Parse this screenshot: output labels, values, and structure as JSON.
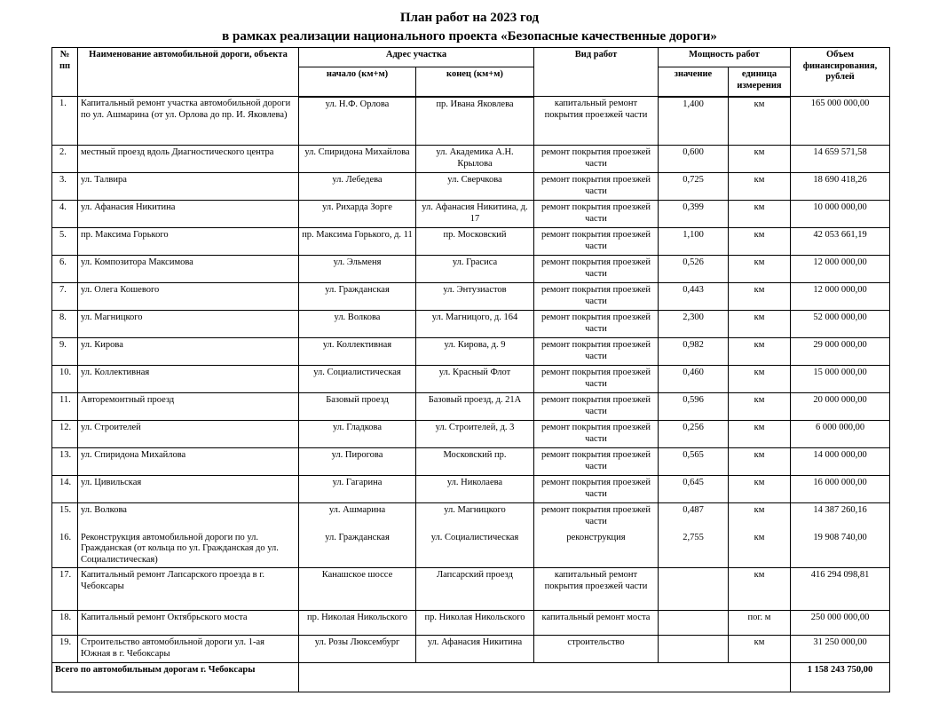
{
  "title": {
    "line1": "План работ на 2023 год",
    "line2": "в рамках реализации национального проекта «Безопасные качественные дороги»"
  },
  "headers": {
    "num": "№ пп",
    "name": "Наименование автомобильной дороги, объекта",
    "address": "Адрес участка",
    "start": "начало (км+м)",
    "end": "конец (км+м)",
    "work": "Вид работ",
    "capacity": "Мощность работ",
    "value": "значение",
    "unit": "единица измерения",
    "funding": "Объем финансирования, рублей"
  },
  "rows": [
    {
      "num": "1.",
      "name": "Капитальный ремонт участка автомобильной дороги по ул. Ашмарина (от ул. Орлова до пр. И. Яковлева)",
      "start": "ул. Н.Ф. Орлова",
      "end": "пр. Ивана Яковлева",
      "work": "капитальный ремонт покрытия проезжей части",
      "value": "1,400",
      "unit": "км",
      "funding": "165 000 000,00"
    },
    {
      "num": "2.",
      "name": "местный проезд вдоль Диагностического центра",
      "start": "ул. Спиридона Михайлова",
      "end": "ул. Академика А.Н. Крылова",
      "work": "ремонт покрытия проезжей части",
      "value": "0,600",
      "unit": "км",
      "funding": "14 659 571,58"
    },
    {
      "num": "3.",
      "name": "ул. Талвира",
      "start": "ул. Лебедева",
      "end": "ул. Сверчкова",
      "work": "ремонт покрытия проезжей части",
      "value": "0,725",
      "unit": "км",
      "funding": "18 690 418,26"
    },
    {
      "num": "4.",
      "name": "ул. Афанасия Никитина",
      "start": "ул. Рихарда Зорге",
      "end": "ул. Афанасия Никитина, д. 17",
      "work": "ремонт покрытия проезжей части",
      "value": "0,399",
      "unit": "км",
      "funding": "10 000 000,00"
    },
    {
      "num": "5.",
      "name": "пр. Максима Горького",
      "start": "пр. Максима Горького, д. 11",
      "end": "пр. Московский",
      "work": "ремонт покрытия проезжей части",
      "value": "1,100",
      "unit": "км",
      "funding": "42 053 661,19"
    },
    {
      "num": "6.",
      "name": "ул. Композитора Максимова",
      "start": "ул. Эльменя",
      "end": "ул. Грасиса",
      "work": "ремонт покрытия проезжей части",
      "value": "0,526",
      "unit": "км",
      "funding": "12 000 000,00"
    },
    {
      "num": "7.",
      "name": "ул. Олега Кошевого",
      "start": "ул. Гражданская",
      "end": "ул. Энтузиастов",
      "work": "ремонт покрытия проезжей части",
      "value": "0,443",
      "unit": "км",
      "funding": "12 000 000,00"
    },
    {
      "num": "8.",
      "name": "ул. Магницкого",
      "start": "ул. Волкова",
      "end": "ул. Магницого, д. 164",
      "work": "ремонт покрытия проезжей части",
      "value": "2,300",
      "unit": "км",
      "funding": "52 000 000,00"
    },
    {
      "num": "9.",
      "name": "ул. Кирова",
      "start": "ул. Коллективная",
      "end": "ул. Кирова, д. 9",
      "work": "ремонт покрытия проезжей части",
      "value": "0,982",
      "unit": "км",
      "funding": "29 000 000,00"
    },
    {
      "num": "10.",
      "name": "ул. Коллективная",
      "start": "ул. Социалистическая",
      "end": "ул. Красный Флот",
      "work": "ремонт покрытия проезжей части",
      "value": "0,460",
      "unit": "км",
      "funding": "15 000 000,00"
    },
    {
      "num": "11.",
      "name": "Авторемонтный проезд",
      "start": "Базовый проезд",
      "end": "Базовый проезд, д. 21А",
      "work": "ремонт покрытия проезжей части",
      "value": "0,596",
      "unit": "км",
      "funding": "20 000 000,00"
    },
    {
      "num": "12.",
      "name": "ул. Строителей",
      "start": "ул. Гладкова",
      "end": "ул. Строителей, д. 3",
      "work": "ремонт покрытия проезжей части",
      "value": "0,256",
      "unit": "км",
      "funding": "6 000 000,00"
    },
    {
      "num": "13.",
      "name": "ул. Спиридона Михайлова",
      "start": "ул. Пирогова",
      "end": "Московский пр.",
      "work": "ремонт покрытия проезжей части",
      "value": "0,565",
      "unit": "км",
      "funding": "14 000 000,00"
    },
    {
      "num": "14.",
      "name": "ул. Цивильская",
      "start": "ул. Гагарина",
      "end": "ул. Николаева",
      "work": "ремонт покрытия проезжей части",
      "value": "0,645",
      "unit": "км",
      "funding": "16 000 000,00"
    },
    {
      "num": "15.",
      "name": "ул. Волкова",
      "start": "ул. Ашмарина",
      "end": "ул. Магницкого",
      "work": "ремонт покрытия проезжей части",
      "value": "0,487",
      "unit": "км",
      "funding": "14 387 260,16"
    },
    {
      "num": "16.",
      "name": "Реконструкция автомобильной дороги по ул. Гражданская (от кольца по ул. Гражданская до ул. Социалистическая)",
      "start": "ул. Гражданская",
      "end": "ул. Социалистическая",
      "work": "реконструкция",
      "value": "2,755",
      "unit": "км",
      "funding": "19 908 740,00"
    },
    {
      "num": "17.",
      "name": "Капитальный ремонт Лапсарского проезда в г. Чебоксары",
      "start": "Канашское шоссе",
      "end": "Лапсарский проезд",
      "work": "капитальный ремонт покрытия проезжей части",
      "value": "",
      "unit": "км",
      "funding": "416 294 098,81"
    },
    {
      "num": "18.",
      "name": "Капитальный ремонт Октябрьского моста",
      "start": "пр. Николая Никольского",
      "end": "пр. Николая Никольского",
      "work": "капитальный ремонт моста",
      "value": "",
      "unit": "пог. м",
      "funding": "250 000 000,00"
    },
    {
      "num": "19.",
      "name": "Строительство автомобильной дороги ул. 1-ая Южная в г. Чебоксары",
      "start": "ул. Розы Люксембург",
      "end": "ул. Афанасия Никитина",
      "work": "строительство",
      "value": "",
      "unit": "км",
      "funding": "31 250 000,00"
    }
  ],
  "total": {
    "label": "Всего по автомобильным дорогам г. Чебоксары",
    "funding": "1 158 243 750,00"
  }
}
